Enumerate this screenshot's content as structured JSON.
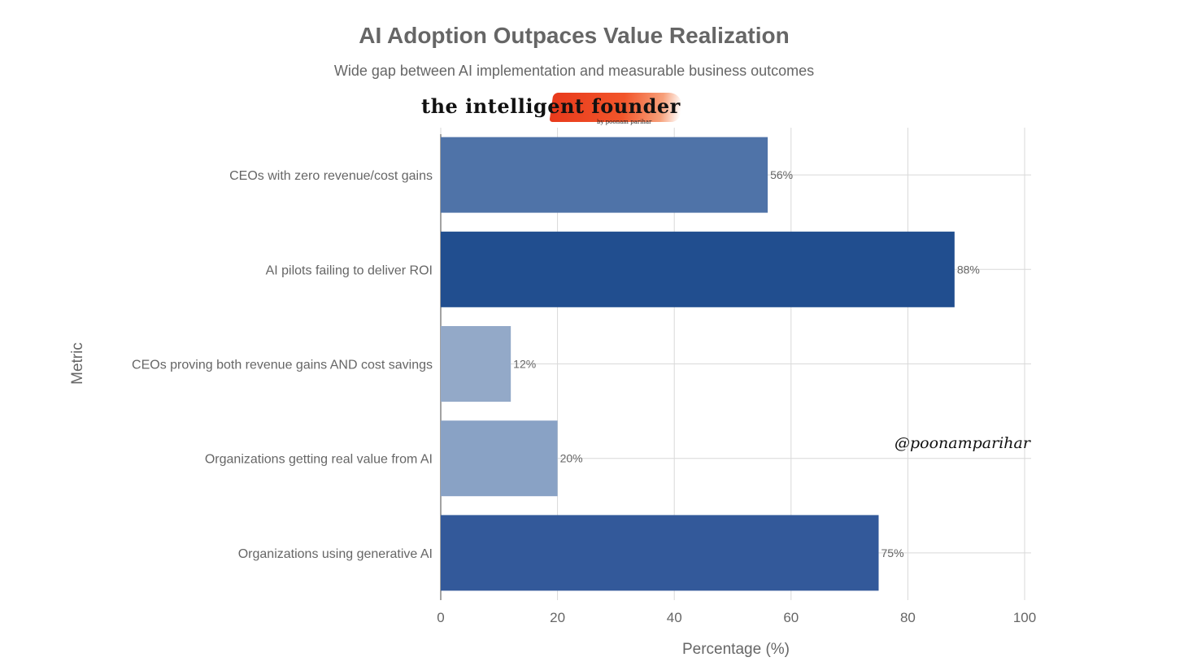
{
  "chart_data": {
    "type": "bar",
    "orientation": "horizontal",
    "title": "AI Adoption Outpaces Value Realization",
    "subtitle": "Wide gap between AI implementation and measurable business outcomes",
    "xlabel": "Percentage (%)",
    "ylabel": "Metric",
    "xlim": [
      0,
      100
    ],
    "xticks": [
      0,
      20,
      40,
      60,
      80,
      100
    ],
    "grid": true,
    "categories": [
      "CEOs with zero revenue/cost gains",
      "AI pilots failing to deliver ROI",
      "CEOs proving both revenue gains AND cost savings",
      "Organizations getting real value from AI",
      "Organizations using generative AI"
    ],
    "values": [
      56,
      88,
      12,
      20,
      75
    ],
    "data_labels": [
      "56%",
      "88%",
      "12%",
      "20%",
      "75%"
    ],
    "bar_colors": [
      "#4f73a8",
      "#214e8f",
      "#93a9c8",
      "#89a2c5",
      "#33599a"
    ]
  },
  "branding": {
    "logo_text": "the intelligent founder",
    "logo_byline": "by poonam parihar",
    "handle": "@poonamparihar"
  }
}
